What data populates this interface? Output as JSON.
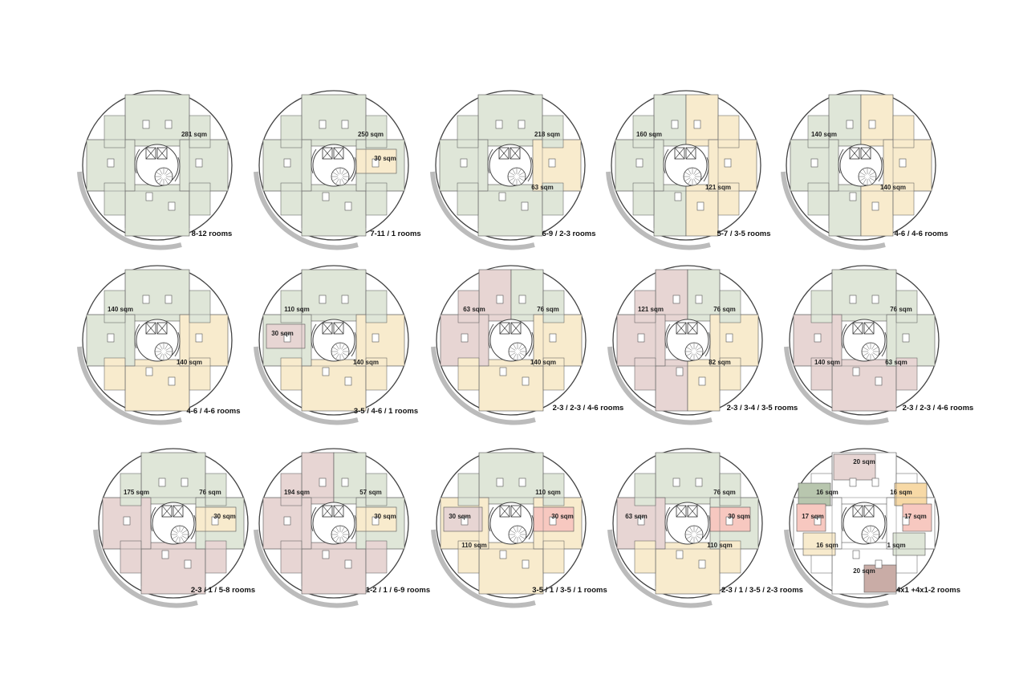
{
  "colors": {
    "green": "#dfe6d8",
    "yellow": "#f8ebcd",
    "pink": "#e7d5d3",
    "salmon": "#f7c8c0",
    "dark_green": "#b8c6ae",
    "orange": "#f7d9a6",
    "mauve": "#c9aca6",
    "white": "#ffffff",
    "line": "#555555"
  },
  "plans": [
    {
      "caption": "8-12 rooms",
      "units": {
        "top": "green",
        "right": "green",
        "bottom": "green",
        "left": "green"
      },
      "labels": [
        {
          "text": "281 sqm",
          "pos": "ne"
        }
      ]
    },
    {
      "caption": "7-11 / 1 rooms",
      "units": {
        "top": "green",
        "right": "green",
        "bottom": "green",
        "left": "green",
        "east_small": "yellow"
      },
      "labels": [
        {
          "text": "250 sqm",
          "pos": "ne"
        },
        {
          "text": "30 sqm",
          "pos": "e"
        }
      ]
    },
    {
      "caption": "6-9 / 2-3 rooms",
      "units": {
        "top": "green",
        "right": "yellow",
        "bottom": "green",
        "left": "green"
      },
      "labels": [
        {
          "text": "218 sqm",
          "pos": "ne"
        },
        {
          "text": "63 sqm",
          "pos": "se"
        }
      ]
    },
    {
      "caption": "5-7 / 3-5 rooms",
      "units": {
        "top": "split",
        "right": "yellow",
        "bottom": "split",
        "left": "green"
      },
      "labels": [
        {
          "text": "160 sqm",
          "pos": "nw"
        },
        {
          "text": "121 sqm",
          "pos": "se"
        }
      ]
    },
    {
      "caption": "4-6 / 4-6 rooms",
      "units": {
        "top": "split",
        "right": "yellow",
        "bottom": "split",
        "left": "green"
      },
      "labels": [
        {
          "text": "140 sqm",
          "pos": "nw"
        },
        {
          "text": "140 sqm",
          "pos": "se"
        }
      ]
    },
    {
      "caption": "4-6 / 4-6   rooms",
      "units": {
        "top": "green",
        "right": "yellow",
        "bottom": "yellow",
        "left": "green"
      },
      "labels": [
        {
          "text": "140 sqm",
          "pos": "nw"
        },
        {
          "text": "140 sqm",
          "pos": "se"
        }
      ]
    },
    {
      "caption": "3-5 / 4-6 / 1 rooms",
      "units": {
        "top": "green",
        "right": "yellow",
        "bottom": "yellow",
        "left": "green",
        "west_small": "pink"
      },
      "labels": [
        {
          "text": "110 sqm",
          "pos": "nw"
        },
        {
          "text": "30 sqm",
          "pos": "w"
        },
        {
          "text": "140 sqm",
          "pos": "se"
        }
      ]
    },
    {
      "caption": "2-3 / 2-3 / 4-6 rooms",
      "units": {
        "top": "split-pink-green",
        "right": "yellow",
        "bottom": "yellow",
        "left": "pink"
      },
      "labels": [
        {
          "text": "63 sqm",
          "pos": "nw"
        },
        {
          "text": "76 sqm",
          "pos": "ne"
        },
        {
          "text": "140 sqm",
          "pos": "se"
        }
      ]
    },
    {
      "caption": "2-3 / 3-4 / 3-5 rooms",
      "units": {
        "top": "split-pink-green",
        "right": "yellow",
        "bottom": "split-pink-yellow",
        "left": "pink"
      },
      "labels": [
        {
          "text": "121 sqm",
          "pos": "nw"
        },
        {
          "text": "76 sqm",
          "pos": "ne"
        },
        {
          "text": "82 sqm",
          "pos": "se"
        }
      ]
    },
    {
      "caption": "2-3 / 2-3 / 4-6 rooms",
      "units": {
        "top": "green",
        "right": "green",
        "bottom": "pink",
        "left": "pink"
      },
      "labels": [
        {
          "text": "76 sqm",
          "pos": "ne"
        },
        {
          "text": "140 sqm",
          "pos": "sw"
        },
        {
          "text": "63 sqm",
          "pos": "se"
        }
      ]
    },
    {
      "caption": "2-3 / 1 / 5-8 rooms",
      "units": {
        "top": "green",
        "right": "green",
        "bottom": "pink",
        "left": "pink",
        "east_small": "yellow"
      },
      "labels": [
        {
          "text": "175 sqm",
          "pos": "nw"
        },
        {
          "text": "76 sqm",
          "pos": "ne"
        },
        {
          "text": "30 sqm",
          "pos": "e"
        }
      ]
    },
    {
      "caption": "1-2 / 1 / 6-9 rooms",
      "units": {
        "top": "split-pink-green",
        "right": "green",
        "bottom": "pink",
        "left": "pink",
        "east_small": "yellow"
      },
      "labels": [
        {
          "text": "194 sqm",
          "pos": "nw"
        },
        {
          "text": "57 sqm",
          "pos": "ne"
        },
        {
          "text": "30 sqm",
          "pos": "e"
        }
      ]
    },
    {
      "caption": "3-5 / 1 / 3-5 / 1 rooms",
      "units": {
        "top": "green",
        "right": "yellow",
        "bottom": "yellow",
        "left": "yellow",
        "west_small": "pink",
        "east_small": "salmon"
      },
      "labels": [
        {
          "text": "110 sqm",
          "pos": "ne"
        },
        {
          "text": "30 sqm",
          "pos": "w"
        },
        {
          "text": "30 sqm",
          "pos": "e"
        },
        {
          "text": "110 sqm",
          "pos": "sw"
        }
      ]
    },
    {
      "caption": "2-3 / 1 / 3-5 / 2-3 rooms",
      "units": {
        "top": "green",
        "right": "green",
        "bottom": "yellow",
        "left": "pink",
        "east_small": "salmon"
      },
      "labels": [
        {
          "text": "76 sqm",
          "pos": "ne"
        },
        {
          "text": "63 sqm",
          "pos": "w"
        },
        {
          "text": "30 sqm",
          "pos": "e"
        },
        {
          "text": "110 sqm",
          "pos": "se"
        }
      ]
    },
    {
      "caption": "4x1 +4x1-2 rooms",
      "units": {
        "top": "white",
        "right": "white",
        "bottom": "white",
        "left": "white",
        "cells": [
          {
            "pos": "n",
            "color": "pink"
          },
          {
            "pos": "nw",
            "color": "dark_green"
          },
          {
            "pos": "ne",
            "color": "orange"
          },
          {
            "pos": "w",
            "color": "salmon"
          },
          {
            "pos": "e",
            "color": "salmon"
          },
          {
            "pos": "sw",
            "color": "yellow"
          },
          {
            "pos": "se",
            "color": "green"
          },
          {
            "pos": "s",
            "color": "mauve"
          }
        ]
      },
      "labels": [
        {
          "text": "20 sqm",
          "pos": "n"
        },
        {
          "text": "16 sqm",
          "pos": "nw"
        },
        {
          "text": "16 sqm",
          "pos": "ne"
        },
        {
          "text": "17 sqm",
          "pos": "w"
        },
        {
          "text": "17 sqm",
          "pos": "e"
        },
        {
          "text": "16 sqm",
          "pos": "sw"
        },
        {
          "text": "1 sqm",
          "pos": "se"
        },
        {
          "text": "20 sqm",
          "pos": "s"
        }
      ]
    }
  ]
}
